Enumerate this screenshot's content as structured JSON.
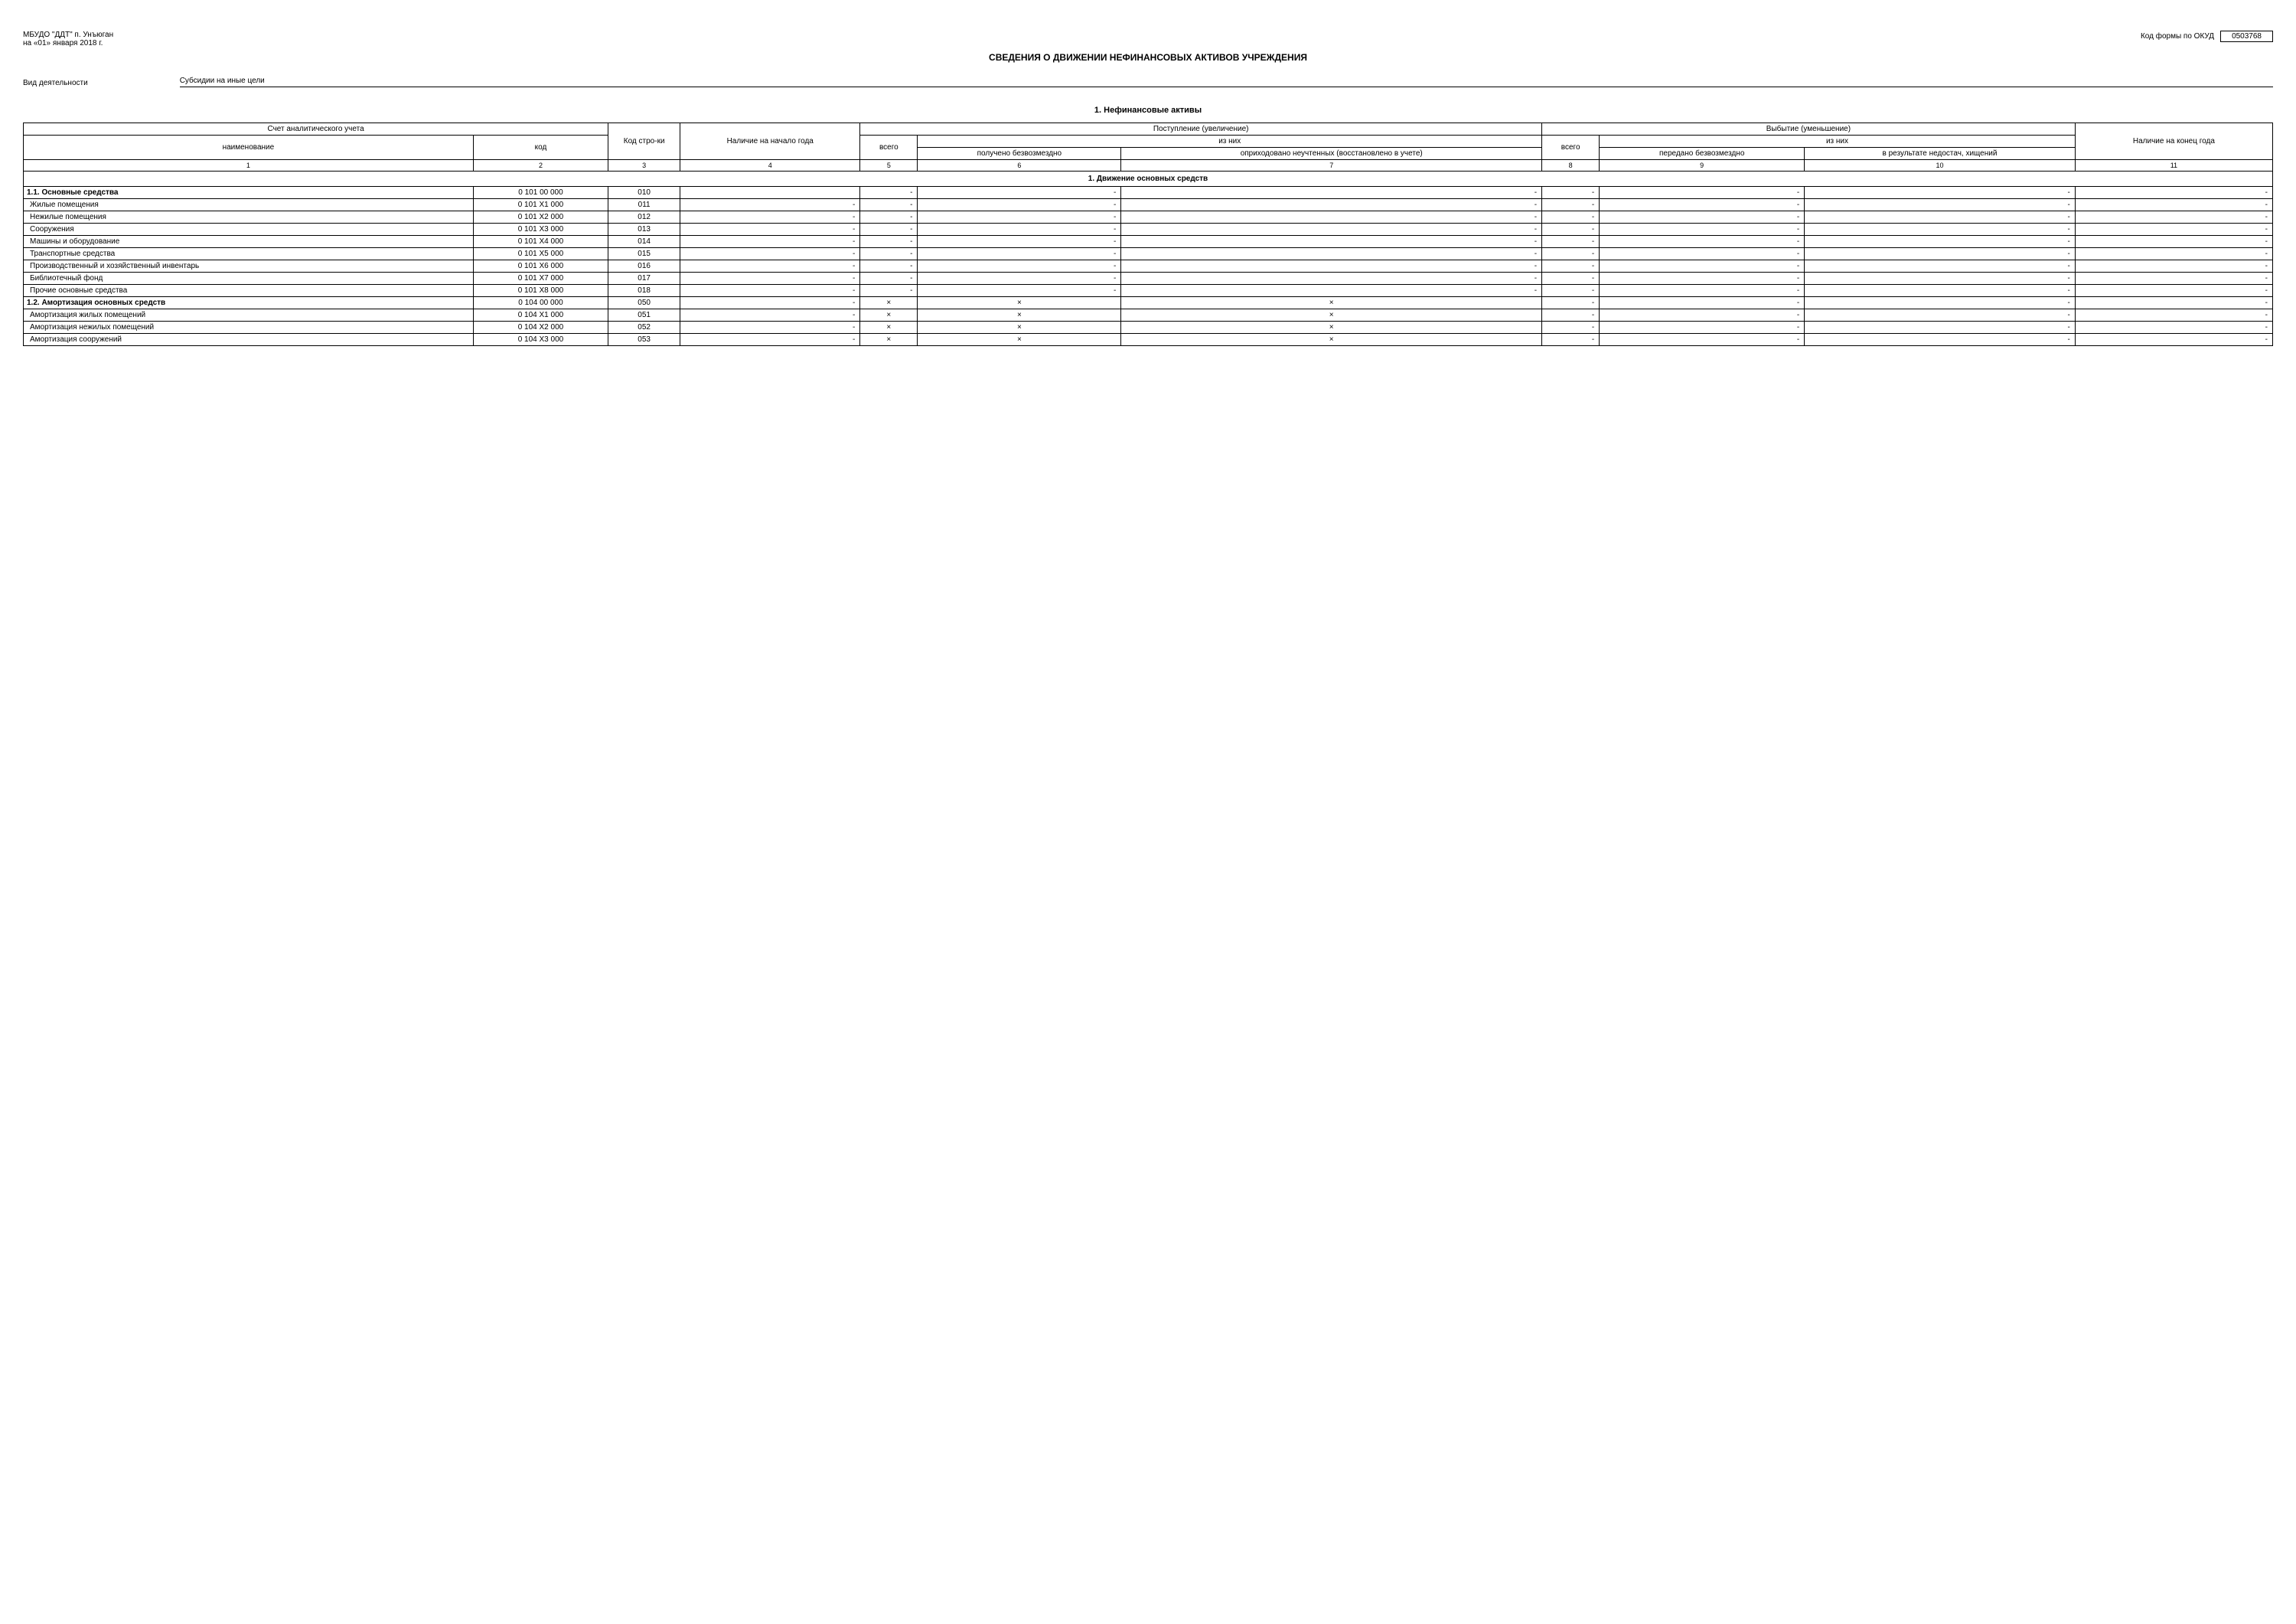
{
  "header": {
    "org_line1": "МБУДО \"ДДТ\" п. Унъюган",
    "org_line2": "на «01» января 2018 г.",
    "okud_label": "Код формы по ОКУД",
    "okud_value": "0503768"
  },
  "title": "СВЕДЕНИЯ О ДВИЖЕНИИ НЕФИНАНСОВЫХ АКТИВОВ УЧРЕЖДЕНИЯ",
  "activity": {
    "label": "Вид деятельности",
    "value": "Субсидии на иные цели"
  },
  "section_title": "1. Нефинансовые активы",
  "table": {
    "head": {
      "account": "Счет аналитического учета",
      "name": "наименование",
      "code": "код",
      "line_code": "Код стро-ки",
      "start": "Наличие на начало года",
      "inflow": "Поступление (увеличение)",
      "outflow": "Выбытие (уменьшение)",
      "of_them": "из них",
      "total": "всего",
      "received_free": "получено безвозмездно",
      "capitalized": "оприходовано неучтенных (восстановлено в учете)",
      "transferred_free": "передано безвозмездно",
      "shortages": "в результате недостач, хищений",
      "end": "Наличие на конец года"
    },
    "colnums": [
      "1",
      "2",
      "3",
      "4",
      "5",
      "6",
      "7",
      "8",
      "9",
      "10",
      "11"
    ],
    "section1_title": "1. Движение основных средств",
    "rows": [
      {
        "name": "1.1. Основные средства",
        "code": "0 101 00 000",
        "line": "010",
        "bold": true,
        "c5": "-",
        "c6": "-",
        "c7": "-",
        "c8": "-",
        "c9": "-",
        "c10": "-",
        "c11": "-"
      },
      {
        "name": "Жилые помещения",
        "code": "0 101 X1 000",
        "line": "011",
        "c4": "-",
        "c5": "-",
        "c6": "-",
        "c7": "-",
        "c8": "-",
        "c9": "-",
        "c10": "-",
        "c11": "-"
      },
      {
        "name": "Нежилые помещения",
        "code": "0 101 X2 000",
        "line": "012",
        "c4": "-",
        "c5": "-",
        "c6": "-",
        "c7": "-",
        "c8": "-",
        "c9": "-",
        "c10": "-",
        "c11": "-"
      },
      {
        "name": "Сооружения",
        "code": "0 101 X3 000",
        "line": "013",
        "c4": "-",
        "c5": "-",
        "c6": "-",
        "c7": "-",
        "c8": "-",
        "c9": "-",
        "c10": "-",
        "c11": "-"
      },
      {
        "name": "Машины и оборудование",
        "code": "0 101 X4 000",
        "line": "014",
        "c4": "-",
        "c5": "-",
        "c6": "-",
        "c7": "-",
        "c8": "-",
        "c9": "-",
        "c10": "-",
        "c11": "-"
      },
      {
        "name": "Транспортные средства",
        "code": "0 101 X5 000",
        "line": "015",
        "c4": "-",
        "c5": "-",
        "c6": "-",
        "c7": "-",
        "c8": "-",
        "c9": "-",
        "c10": "-",
        "c11": "-"
      },
      {
        "name": "Производственный и хозяйственный инвентарь",
        "code": "0 101 X6 000",
        "line": "016",
        "c4": "-",
        "c5": "-",
        "c6": "-",
        "c7": "-",
        "c8": "-",
        "c9": "-",
        "c10": "-",
        "c11": "-"
      },
      {
        "name": "Библиотечный фонд",
        "code": "0 101 X7 000",
        "line": "017",
        "c4": "-",
        "c5": "-",
        "c6": "-",
        "c7": "-",
        "c8": "-",
        "c9": "-",
        "c10": "-",
        "c11": "-"
      },
      {
        "name": "Прочие основные средства",
        "code": "0 101 X8 000",
        "line": "018",
        "c4": "-",
        "c5": "-",
        "c6": "-",
        "c7": "-",
        "c8": "-",
        "c9": "-",
        "c10": "-",
        "c11": "-"
      },
      {
        "name": "1.2. Амортизация основных средств",
        "code": "0 104 00 000",
        "line": "050",
        "bold": true,
        "c4": "-",
        "c5": "×",
        "c6": "×",
        "c7": "×",
        "c8": "-",
        "c9": "-",
        "c10": "-",
        "c11": "-"
      },
      {
        "name": "Амортизация жилых помещений",
        "code": "0 104 X1 000",
        "line": "051",
        "c4": "-",
        "c5": "×",
        "c6": "×",
        "c7": "×",
        "c8": "-",
        "c9": "-",
        "c10": "-",
        "c11": "-"
      },
      {
        "name": "Амортизация нежилых помещений",
        "code": "0 104 X2 000",
        "line": "052",
        "c4": "-",
        "c5": "×",
        "c6": "×",
        "c7": "×",
        "c8": "-",
        "c9": "-",
        "c10": "-",
        "c11": "-"
      },
      {
        "name": "Амортизация сооружений",
        "code": "0 104 X3 000",
        "line": "053",
        "c4": "-",
        "c5": "×",
        "c6": "×",
        "c7": "×",
        "c8": "-",
        "c9": "-",
        "c10": "-",
        "c11": "-"
      }
    ]
  }
}
